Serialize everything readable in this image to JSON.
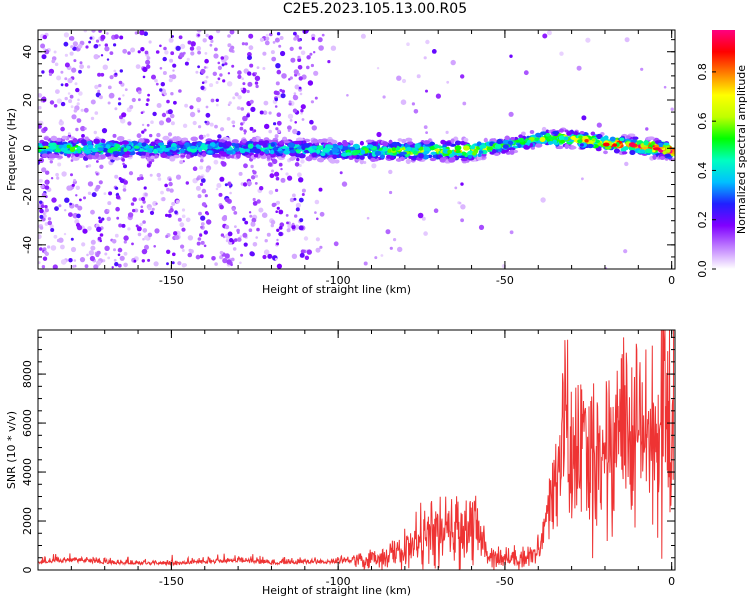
{
  "figure": {
    "title": "C2E5.2023.105.13.00.R05"
  },
  "colors": {
    "snr_line": "#ee3333",
    "axis": "#000000",
    "colormap": [
      "#ffffff",
      "#c080ff",
      "#8000ff",
      "#2020ff",
      "#00c0ff",
      "#00ffc0",
      "#00ff00",
      "#c0ff00",
      "#ffff00",
      "#ff8000",
      "#ff0000",
      "#ff0080"
    ]
  },
  "chart_data": [
    {
      "type": "heatmap",
      "xlabel": "Height of straight line (km)",
      "ylabel": "Frequency (Hz)",
      "xlim": [
        -190,
        1
      ],
      "ylim": [
        -50,
        49
      ],
      "xticks": [
        -150,
        -100,
        -50,
        0
      ],
      "yticks": [
        -40,
        -20,
        0,
        20,
        40
      ],
      "colorbar": {
        "label": "Normalized spectral amplitude",
        "range": [
          0.0,
          0.97
        ],
        "ticks": [
          0.0,
          0.2,
          0.4,
          0.6,
          0.8
        ]
      },
      "ridge": {
        "description_points_x": [
          -190,
          -150,
          -120,
          -100,
          -80,
          -60,
          -50,
          -40,
          -30,
          -20,
          -10,
          0
        ],
        "center_frequency": [
          0,
          0,
          0,
          -1,
          -1,
          -1,
          1,
          4,
          4,
          2,
          1,
          -1
        ],
        "peak_amplitude": [
          0.55,
          0.45,
          0.45,
          0.5,
          0.6,
          0.75,
          0.5,
          0.6,
          0.7,
          0.85,
          0.95,
          0.95
        ]
      }
    },
    {
      "type": "line",
      "xlabel": "Height of straight line (km)",
      "ylabel": "SNR (10 * v/v)",
      "xlim": [
        -190,
        1
      ],
      "ylim": [
        0,
        9800
      ],
      "xticks": [
        -150,
        -100,
        -50,
        0
      ],
      "yticks": [
        0,
        2000,
        4000,
        6000,
        8000
      ],
      "series": [
        {
          "x": [
            -190,
            -180,
            -170,
            -160,
            -150,
            -140,
            -130,
            -120,
            -110,
            -100,
            -95,
            -90,
            -85,
            -80,
            -75,
            -70,
            -65,
            -60,
            -57,
            -55,
            -50,
            -45,
            -40,
            -38,
            -35,
            -32,
            -30,
            -28,
            -25,
            -22,
            -20,
            -18,
            -15,
            -12,
            -10,
            -8,
            -5,
            -3,
            -1,
            0,
            1
          ],
          "y": [
            250,
            330,
            250,
            220,
            210,
            250,
            330,
            230,
            250,
            270,
            330,
            450,
            600,
            800,
            1300,
            1500,
            1500,
            1900,
            1200,
            650,
            500,
            500,
            700,
            1500,
            3500,
            5800,
            4500,
            4800,
            4500,
            4800,
            4500,
            5500,
            6200,
            4500,
            5800,
            5300,
            5200,
            6200,
            6900,
            3600,
            8800
          ]
        }
      ]
    }
  ]
}
